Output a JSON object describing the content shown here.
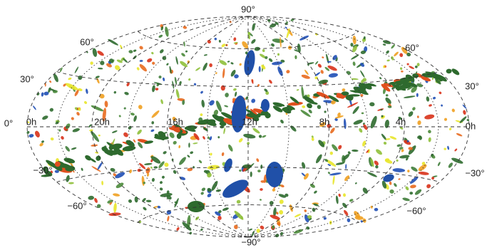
{
  "labels": {
    "top": "90°",
    "bottom": "−90°",
    "left": [
      "60°",
      "30°",
      "0°",
      "−30°",
      "−60°"
    ],
    "right": [
      "60°",
      "30°",
      "−30°",
      "−60°"
    ],
    "hours": [
      "0h",
      "20h",
      "16h",
      "12h",
      "8h",
      "4h",
      "0h"
    ]
  }
}
